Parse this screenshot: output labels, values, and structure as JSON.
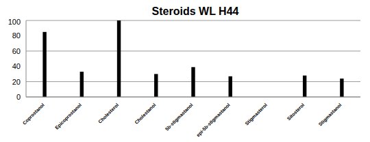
{
  "chart_data": {
    "type": "bar",
    "title": "Steroids WL H44",
    "categories": [
      "Coprostanol",
      "Epicoprostanol",
      "Cholesterol",
      "Cholestanol",
      "5b-stigmastanol",
      "epi-5b-stigmastanol",
      "Stigmasterol",
      "Sitosterol",
      "Stigmastanol"
    ],
    "values": [
      85,
      33,
      100,
      30,
      39,
      27,
      0,
      28,
      24
    ],
    "color": "#000000",
    "ylim": [
      0,
      100
    ],
    "yticks": [
      0,
      20,
      40,
      60,
      80,
      100
    ],
    "grid": true
  }
}
